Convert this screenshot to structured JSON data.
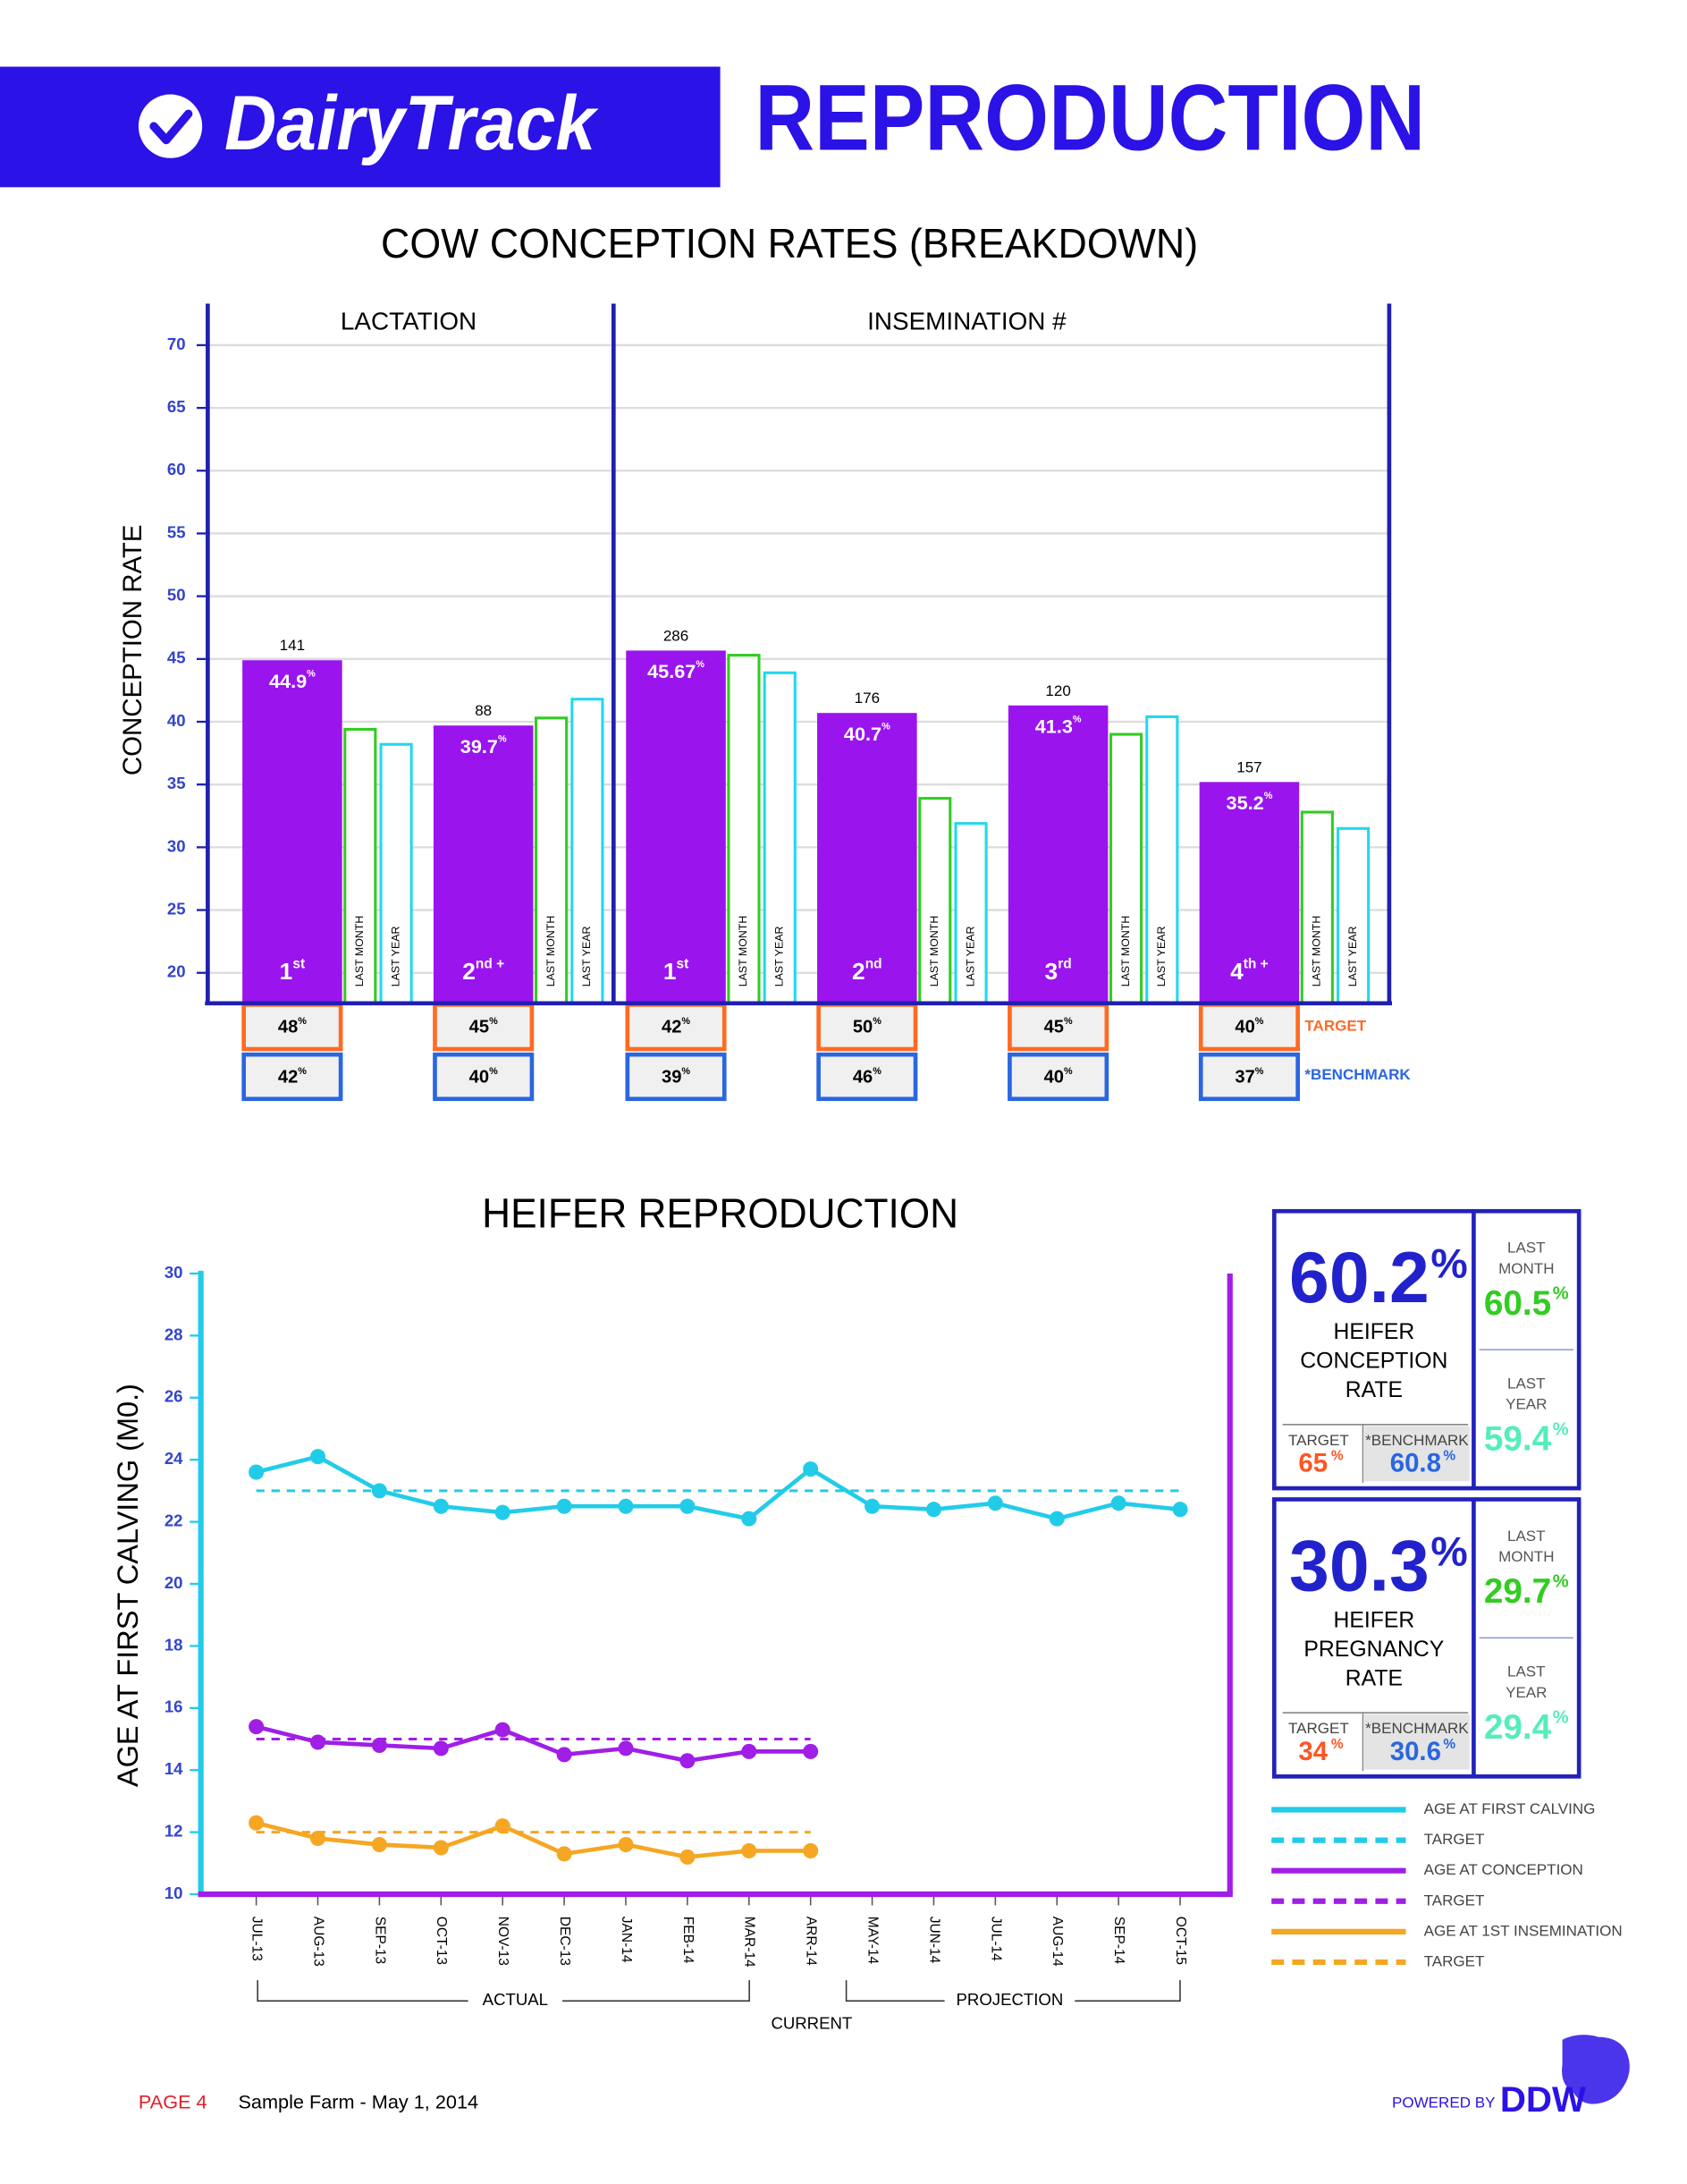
{
  "header": {
    "brand": "DairyTrack",
    "title": "REPRODUCTION"
  },
  "chart_data": [
    {
      "type": "bar",
      "title": "COW CONCEPTION RATES (BREAKDOWN)",
      "y_label": "CONCEPTION RATE",
      "ylim": [
        17.57,
        73.31
      ],
      "yticks": [
        20,
        25,
        30,
        35,
        40,
        45,
        50,
        55,
        60,
        65,
        70
      ],
      "grid": true,
      "value_suffix": "%",
      "groups": [
        {
          "label": "LACTATION",
          "categories": [
            {
              "main": "1",
              "sup": "st"
            },
            {
              "main": "2",
              "sup": "nd +"
            }
          ]
        },
        {
          "label": "INSEMINATION #",
          "categories": [
            {
              "main": "1",
              "sup": "st"
            },
            {
              "main": "2",
              "sup": "nd"
            },
            {
              "main": "3",
              "sup": "rd"
            },
            {
              "main": "4",
              "sup": "th +"
            }
          ]
        }
      ],
      "counts": [
        141,
        88,
        286,
        176,
        120,
        157
      ],
      "series": [
        {
          "color": "#9a14ee",
          "style": "filled",
          "values": [
            44.9,
            39.7,
            45.67,
            40.7,
            41.3,
            35.2
          ]
        },
        {
          "name": "LAST MONTH",
          "color": "#33cc22",
          "style": "outline",
          "values": [
            39.4,
            40.3,
            45.3,
            33.9,
            39.0,
            32.8
          ]
        },
        {
          "name": "LAST YEAR",
          "color": "#22d8ee",
          "style": "outline",
          "values": [
            38.2,
            41.8,
            43.9,
            31.9,
            40.4,
            31.5
          ]
        }
      ],
      "target": {
        "label": "TARGET",
        "color": "#ff6a22",
        "values": [
          48,
          45,
          42,
          50,
          45,
          40
        ]
      },
      "benchmark": {
        "label": "*BENCHMARK",
        "color": "#2a66e0",
        "values": [
          42,
          40,
          39,
          46,
          40,
          37
        ]
      }
    },
    {
      "type": "line",
      "title": "HEIFER REPRODUCTION",
      "y_label": "AGE AT FIRST CALVING (M0.)",
      "ylim": [
        10,
        30
      ],
      "yticks": [
        10,
        12,
        14,
        16,
        18,
        20,
        22,
        24,
        26,
        28,
        30
      ],
      "categories": [
        "JUL-13",
        "AUG-13",
        "SEP-13",
        "OCT-13",
        "NOV-13",
        "DEC-13",
        "JAN-14",
        "FEB-14",
        "MAR-14",
        "ARR-14",
        "MAY-14",
        "JUN-14",
        "JUL-14",
        "AUG-14",
        "SEP-14",
        "OCT-15"
      ],
      "series": [
        {
          "name": "AGE AT FIRST CALVING",
          "color": "#22cce8",
          "dashed": false,
          "values": [
            23.6,
            24.1,
            23.0,
            22.5,
            22.3,
            22.5,
            22.5,
            22.5,
            22.1,
            23.7,
            22.5,
            22.4,
            22.6,
            22.1,
            22.6,
            22.4
          ]
        },
        {
          "name": "TARGET",
          "color": "#22cce8",
          "dashed": true,
          "values": [
            23,
            23,
            23,
            23,
            23,
            23,
            23,
            23,
            23,
            23,
            23,
            23,
            23,
            23,
            23,
            23
          ]
        },
        {
          "name": "AGE AT CONCEPTION",
          "color": "#a01ee6",
          "dashed": false,
          "values": [
            15.4,
            14.9,
            14.8,
            14.7,
            15.3,
            14.5,
            14.7,
            14.3,
            14.6,
            14.6,
            null,
            null,
            null,
            null,
            null,
            null
          ]
        },
        {
          "name": "TARGET",
          "color": "#a01ee6",
          "dashed": true,
          "values": [
            15,
            15,
            15,
            15,
            15,
            15,
            15,
            15,
            15,
            15,
            null,
            null,
            null,
            null,
            null,
            null
          ]
        },
        {
          "name": "AGE AT 1ST INSEMINATION",
          "color": "#f5a623",
          "dashed": false,
          "values": [
            12.3,
            11.8,
            11.6,
            11.5,
            12.2,
            11.3,
            11.6,
            11.2,
            11.4,
            11.4,
            null,
            null,
            null,
            null,
            null,
            null
          ]
        },
        {
          "name": "TARGET",
          "color": "#f5a623",
          "dashed": true,
          "values": [
            12,
            12,
            12,
            12,
            12,
            12,
            12,
            12,
            12,
            12,
            null,
            null,
            null,
            null,
            null,
            null
          ]
        }
      ],
      "annotations": {
        "actual": "ACTUAL",
        "projection": "PROJECTION",
        "current": "CURRENT"
      }
    }
  ],
  "panels": [
    {
      "value": 60.2,
      "unit": "%",
      "label": [
        "HEIFER",
        "CONCEPTION",
        "RATE"
      ],
      "target_label": "TARGET",
      "target": 65,
      "benchmark_label": "*BENCHMARK",
      "benchmark": 60.8,
      "last_month_label": [
        "LAST",
        "MONTH"
      ],
      "last_month": 60.5,
      "last_year_label": [
        "LAST",
        "YEAR"
      ],
      "last_year": 59.4
    },
    {
      "value": 30.3,
      "unit": "%",
      "label": [
        "HEIFER",
        "PREGNANCY",
        "RATE"
      ],
      "target_label": "TARGET",
      "target": 34,
      "benchmark_label": "*BENCHMARK",
      "benchmark": 30.6,
      "last_month_label": [
        "LAST",
        "MONTH"
      ],
      "last_month": 29.7,
      "last_year_label": [
        "LAST",
        "YEAR"
      ],
      "last_year": 29.4
    }
  ],
  "footer": {
    "page": "PAGE 4",
    "farm": "Sample Farm - May 1, 2014",
    "powered": "POWERED BY",
    "logo": "DDW"
  }
}
